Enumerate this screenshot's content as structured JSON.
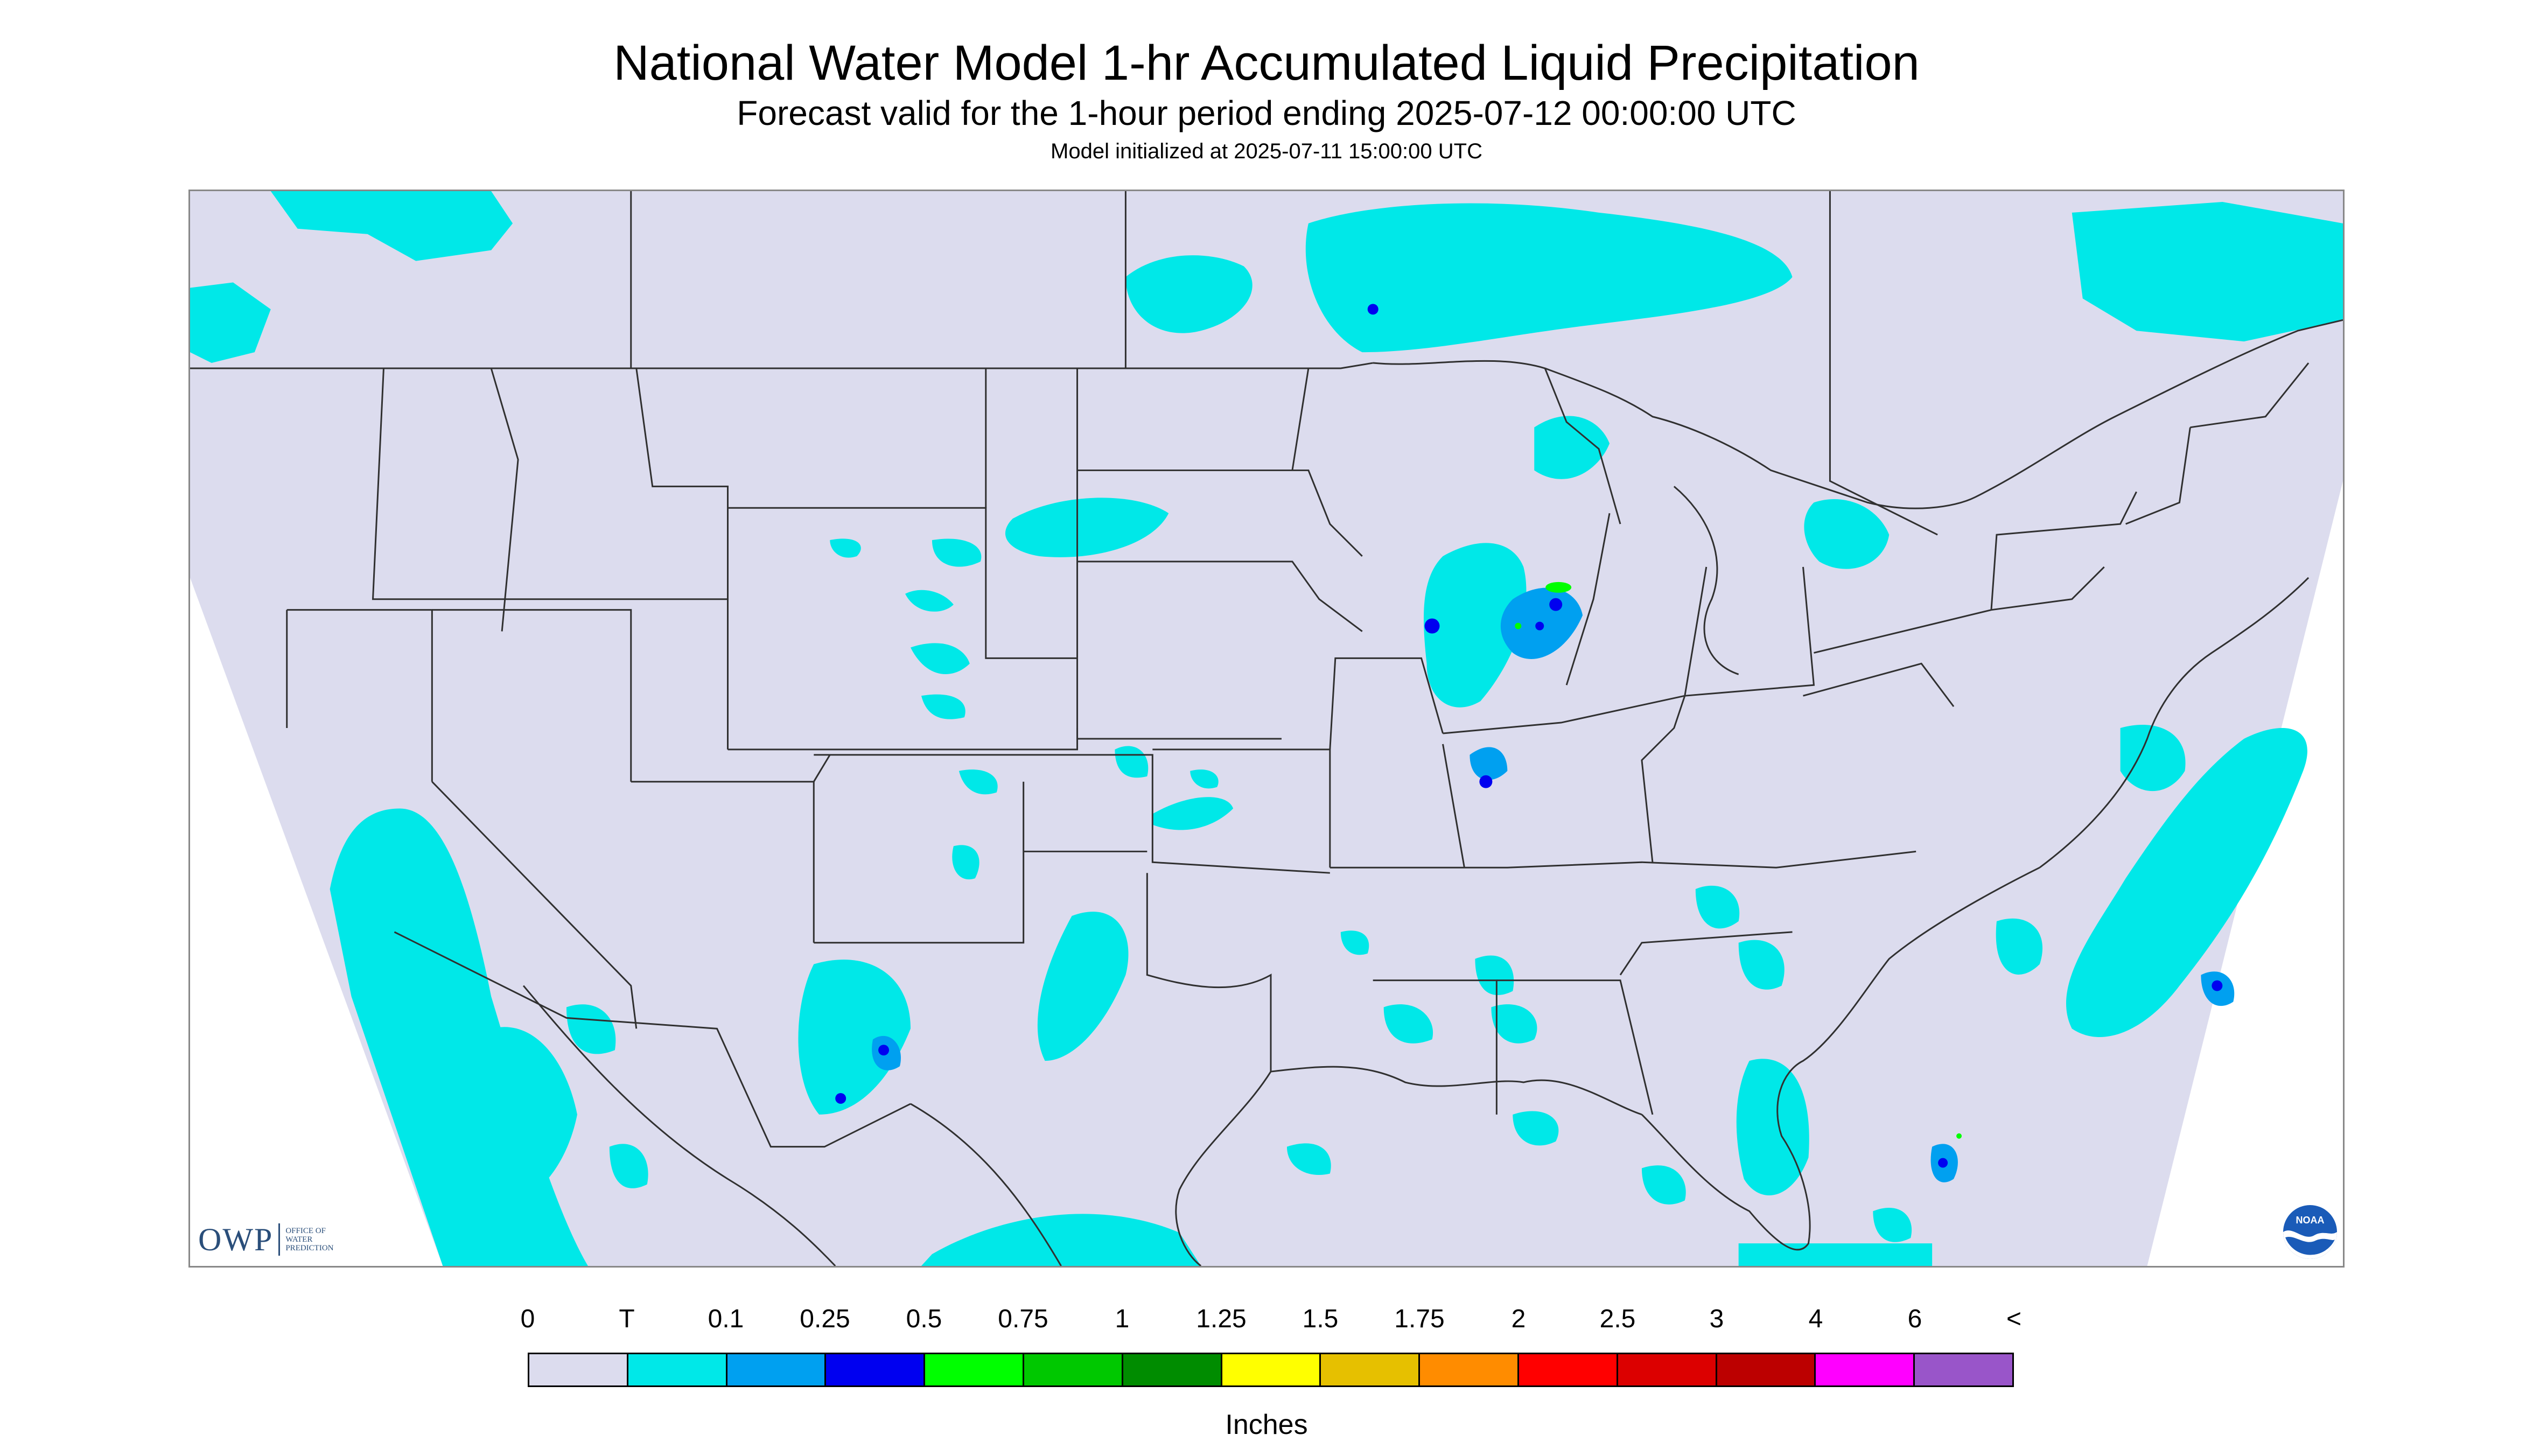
{
  "title": "National Water Model 1-hr Accumulated Liquid Precipitation",
  "subtitle": "Forecast valid for the 1-hour period ending 2025-07-12 00:00:00 UTC",
  "initialized": "Model initialized at 2025-07-11 15:00:00 UTC",
  "logos": {
    "owp_abbrev": "OWP",
    "owp_full": [
      "OFFICE OF",
      "WATER",
      "PREDICTION"
    ],
    "noaa": "NOAA"
  },
  "legend": {
    "unit": "Inches",
    "labels": [
      "0",
      "T",
      "0.1",
      "0.25",
      "0.5",
      "0.75",
      "1",
      "1.25",
      "1.5",
      "1.75",
      "2",
      "2.5",
      "3",
      "4",
      "6",
      "<"
    ],
    "colors": [
      "#dcdcee",
      "#00e8e8",
      "#00a0f0",
      "#0000f0",
      "#00ff00",
      "#00c800",
      "#008c00",
      "#ffff00",
      "#e6c000",
      "#ff8c00",
      "#ff0000",
      "#dc0000",
      "#bc0000",
      "#ff00ff",
      "#9955c9"
    ]
  },
  "map": {
    "background_color": "#dcdcee",
    "light_rain_color": "#00e8e8",
    "moderate_rain_color": "#00a0f0",
    "heavy_rain_color": "#0000f0",
    "green_color": "#00ff00",
    "boundary_color": "#303030"
  }
}
